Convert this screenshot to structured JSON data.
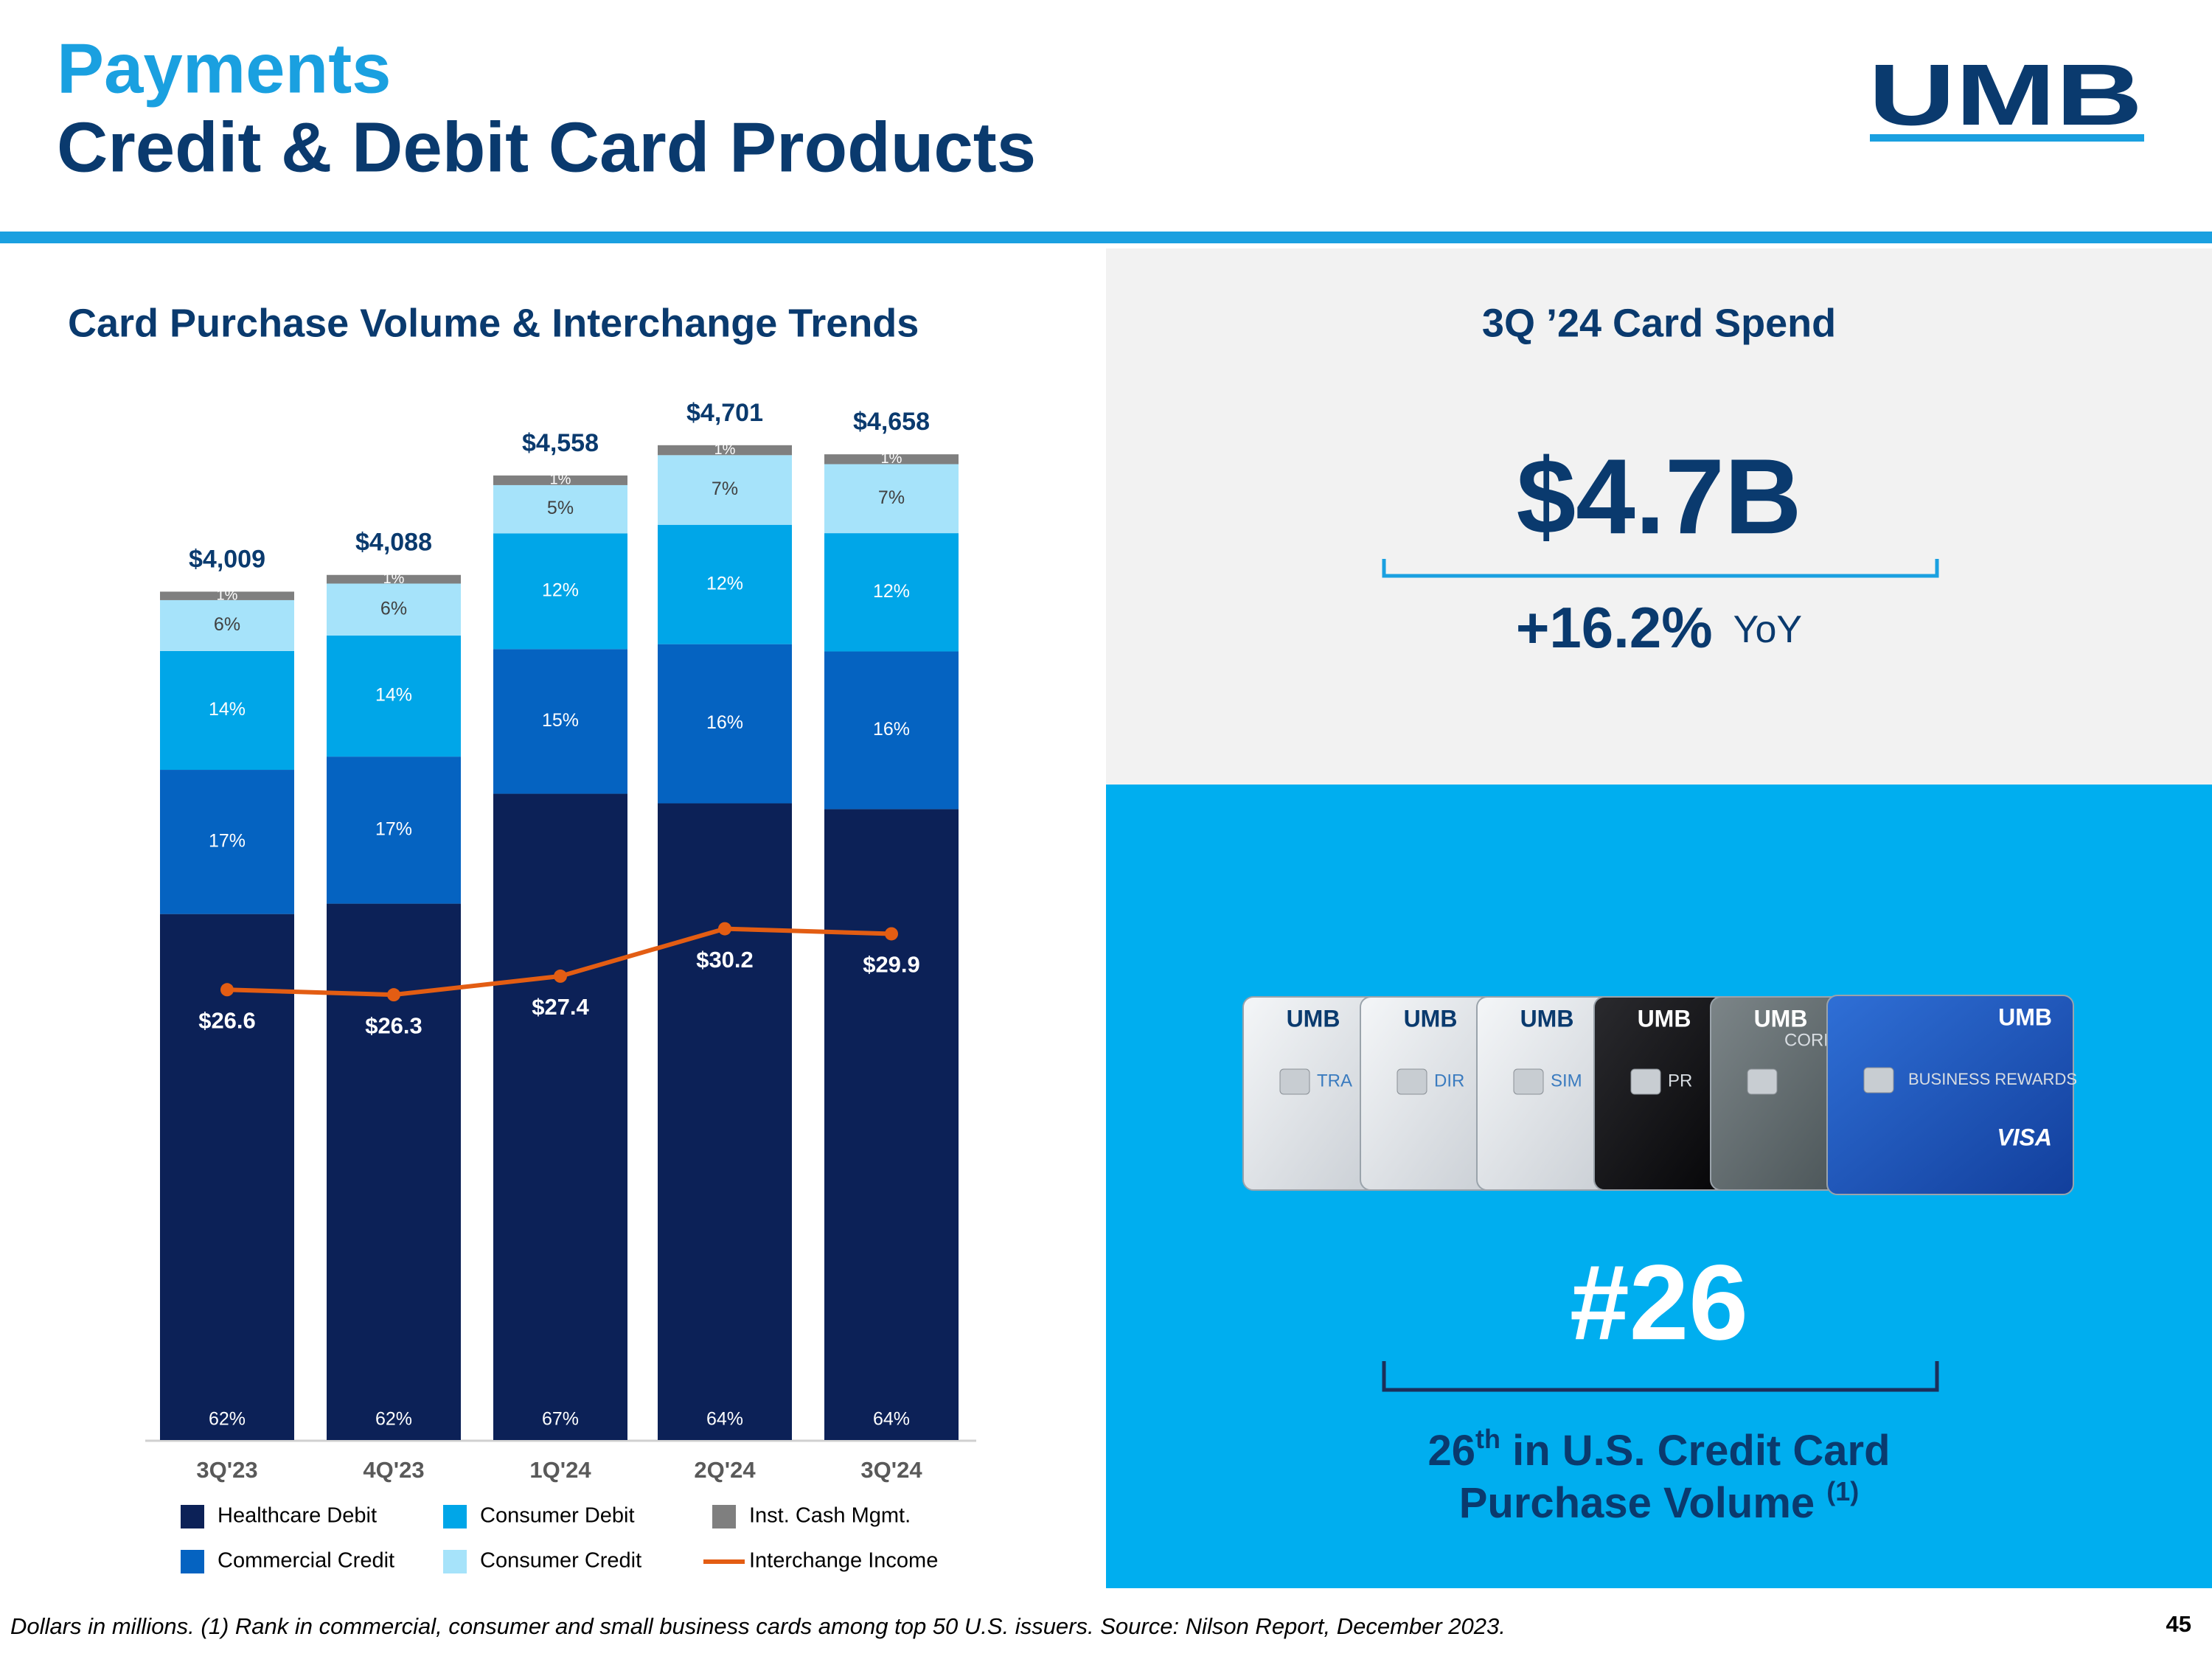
{
  "header": {
    "title_line1": "Payments",
    "title_line2": "Credit & Debit Card Products",
    "logo": "UMB"
  },
  "chart_data": {
    "type": "bar",
    "title": "Card Purchase Volume & Interchange Trends",
    "categories": [
      "3Q'23",
      "4Q'23",
      "1Q'24",
      "2Q'24",
      "3Q'24"
    ],
    "totals": [
      4009,
      4088,
      4558,
      4701,
      4658
    ],
    "total_labels": [
      "$4,009",
      "$4,088",
      "$4,558",
      "$4,701",
      "$4,658"
    ],
    "series": [
      {
        "name": "Healthcare Debit",
        "color": "#0c2157",
        "values": [
          62,
          62,
          67,
          64,
          64
        ],
        "value_labels": [
          "62%",
          "62%",
          "67%",
          "64%",
          "64%"
        ]
      },
      {
        "name": "Commercial Credit",
        "color": "#0563c1",
        "values": [
          17,
          17,
          15,
          16,
          16
        ],
        "value_labels": [
          "17%",
          "17%",
          "15%",
          "16%",
          "16%"
        ]
      },
      {
        "name": "Consumer Debit",
        "color": "#00a6e8",
        "values": [
          14,
          14,
          12,
          12,
          12
        ],
        "value_labels": [
          "14%",
          "14%",
          "12%",
          "12%",
          "12%"
        ]
      },
      {
        "name": "Consumer Credit",
        "color": "#a6e3fa",
        "values": [
          6,
          6,
          5,
          7,
          7
        ],
        "value_labels": [
          "6%",
          "6%",
          "5%",
          "7%",
          "7%"
        ]
      },
      {
        "name": "Inst. Cash Mgmt.",
        "color": "#7f7f7f",
        "values": [
          1,
          1,
          1,
          1,
          1
        ],
        "value_labels": [
          "1%",
          "1%",
          "1%",
          "1%",
          "1%"
        ]
      },
      {
        "name": "Interchange Income",
        "type": "line",
        "axis": "y2",
        "color": "#e35d13",
        "values": [
          26.6,
          26.3,
          27.4,
          30.2,
          29.9
        ],
        "value_labels": [
          "$26.6",
          "$26.3",
          "$27.4",
          "$30.2",
          "$29.9"
        ]
      }
    ]
  },
  "spend": {
    "title": "3Q ’24 Card Spend",
    "value": "$4.7B",
    "growth": "+16.2%",
    "growth_unit": "YoY"
  },
  "cards": [
    {
      "brand": "UMB",
      "label": "TRA"
    },
    {
      "brand": "UMB",
      "label": "DIR"
    },
    {
      "brand": "UMB",
      "label": "SIM"
    },
    {
      "brand": "UMB",
      "label": "PR"
    },
    {
      "brand": "UMB",
      "label": "CORPORA"
    },
    {
      "brand": "UMB",
      "label": "BUSINESS REWARDS",
      "network": "VISA"
    }
  ],
  "rank": {
    "value": "#26",
    "line1_num": "26",
    "line1_sup": "th",
    "line1_rest": " in U.S. Credit Card",
    "line2": "Purchase Volume ",
    "line2_sup": "(1)"
  },
  "footer": {
    "note": "Dollars in millions. (1) Rank in commercial, consumer and small business cards among top 50 U.S. issuers. Source: Nilson Report, December 2023.",
    "page": "45"
  }
}
